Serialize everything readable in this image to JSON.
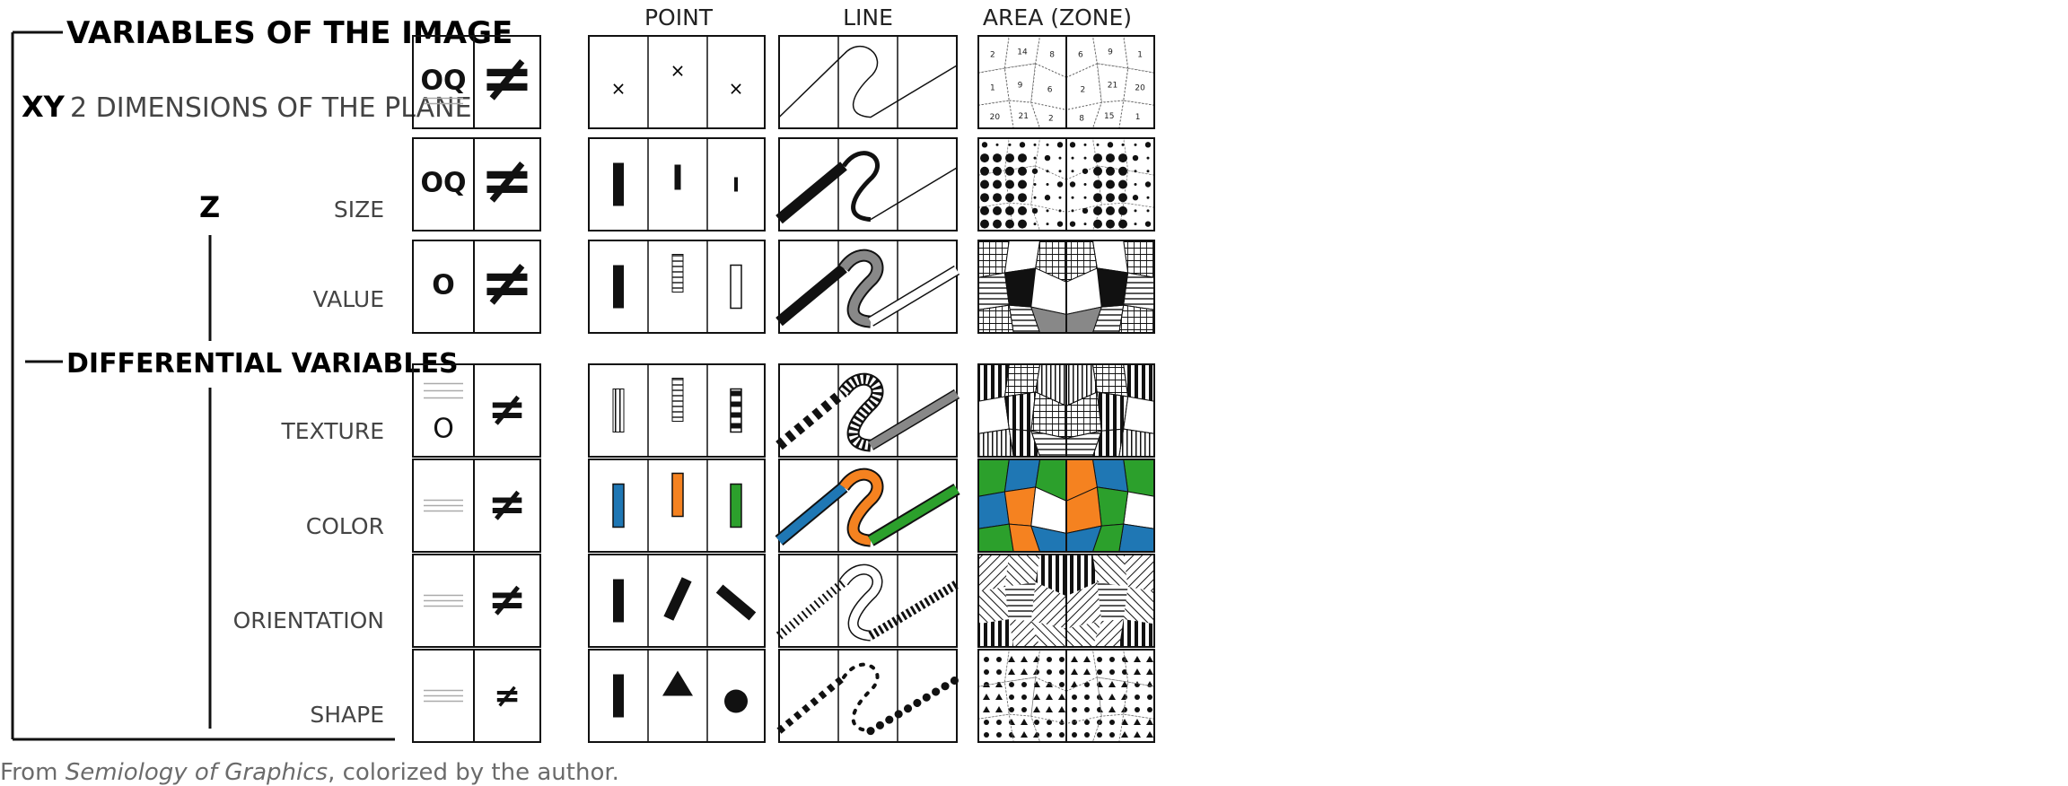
{
  "headings": {
    "image_vars": "VARIABLES OF THE IMAGE",
    "differential": "DIFFERENTIAL VARIABLES",
    "xy_prefix": "XY",
    "xy_text": "2 DIMENSIONS OF THE PLANE",
    "z": "Z"
  },
  "columns": {
    "point": "POINT",
    "line": "LINE",
    "area": "AREA (ZONE)"
  },
  "rows": [
    {
      "key": "xy",
      "label": "",
      "level": "OQ",
      "sym": "≠"
    },
    {
      "key": "size",
      "label": "SIZE",
      "level": "OQ",
      "sym": "≠"
    },
    {
      "key": "value",
      "label": "VALUE",
      "level": "O",
      "sym": "≠"
    },
    {
      "key": "texture",
      "label": "TEXTURE",
      "level": "O",
      "sym": "≠"
    },
    {
      "key": "color",
      "label": "COLOR",
      "level": "",
      "sym": "≠"
    },
    {
      "key": "orientation",
      "label": "ORIENTATION",
      "level": "",
      "sym": "≠"
    },
    {
      "key": "shape",
      "label": "SHAPE",
      "level": "",
      "sym": "≠"
    }
  ],
  "area_numbers": [
    "2",
    "14",
    "8",
    "1",
    "9",
    "6",
    "20",
    "21",
    "2",
    "1",
    "15",
    "8"
  ],
  "colors": {
    "blue": "#1f77b4",
    "orange": "#f58220",
    "green": "#2ca02c",
    "ink": "#111111"
  },
  "caption": {
    "prefix": "From ",
    "title": "Semiology of Graphics",
    "suffix": ", colorized by the author."
  }
}
